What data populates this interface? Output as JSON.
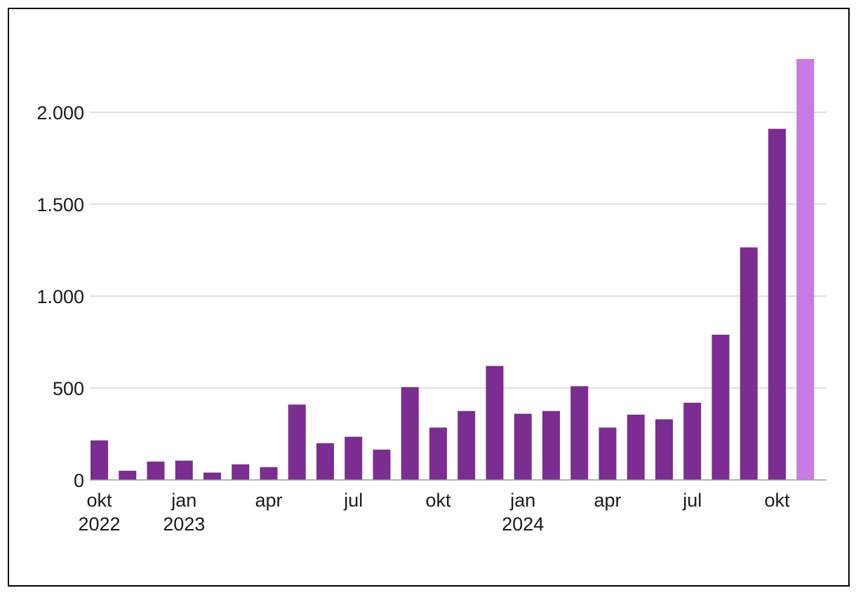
{
  "chart_data": {
    "type": "bar",
    "categories": [
      "okt 2022",
      "nov 2022",
      "dec 2022",
      "jan 2023",
      "feb 2023",
      "mar 2023",
      "apr 2023",
      "maj 2023",
      "jun 2023",
      "jul 2023",
      "aug 2023",
      "sep 2023",
      "okt 2023",
      "nov 2023",
      "dec 2023",
      "jan 2024",
      "feb 2024",
      "mar 2024",
      "apr 2024",
      "maj 2024",
      "jun 2024",
      "jul 2024",
      "aug 2024",
      "sep 2024",
      "okt 2024",
      "nov 2024"
    ],
    "values": [
      215,
      50,
      100,
      105,
      40,
      85,
      70,
      410,
      200,
      235,
      165,
      505,
      285,
      375,
      620,
      360,
      375,
      510,
      285,
      355,
      330,
      420,
      790,
      1265,
      1910,
      2290
    ],
    "highlight_index": 25,
    "colors": {
      "bar": "#7b2d91",
      "highlight": "#c77be3",
      "grid": "#bfbfbf",
      "axis": "#999999"
    },
    "yticks": [
      0,
      500,
      1000,
      1500,
      2000
    ],
    "ytick_labels": [
      "0",
      "500",
      "1.000",
      "1.500",
      "2.000"
    ],
    "ylim": [
      0,
      2300
    ],
    "xtick_labels": [
      {
        "index": 0,
        "line1": "okt",
        "line2": "2022"
      },
      {
        "index": 3,
        "line1": "jan",
        "line2": "2023"
      },
      {
        "index": 6,
        "line1": "apr",
        "line2": ""
      },
      {
        "index": 9,
        "line1": "jul",
        "line2": ""
      },
      {
        "index": 12,
        "line1": "okt",
        "line2": ""
      },
      {
        "index": 15,
        "line1": "jan",
        "line2": "2024"
      },
      {
        "index": 18,
        "line1": "apr",
        "line2": ""
      },
      {
        "index": 21,
        "line1": "jul",
        "line2": ""
      },
      {
        "index": 24,
        "line1": "okt",
        "line2": ""
      }
    ],
    "title": "",
    "xlabel": "",
    "ylabel": "",
    "grid": true,
    "legend": "none"
  }
}
